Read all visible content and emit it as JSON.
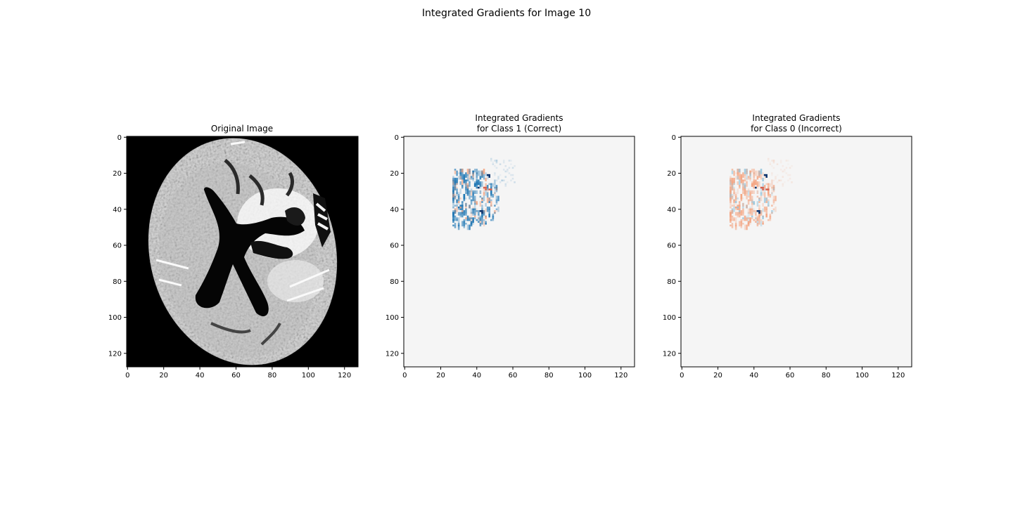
{
  "figure": {
    "suptitle": "Integrated Gradients for Image 10"
  },
  "chart_data": [
    {
      "type": "heatmap",
      "title": "Original Image",
      "colormap": "gray",
      "xlim": [
        0,
        128
      ],
      "ylim": [
        128,
        0
      ],
      "xticks": [
        0,
        20,
        40,
        60,
        80,
        100,
        120
      ],
      "yticks": [
        0,
        20,
        40,
        60,
        80,
        100,
        120
      ],
      "tick_labels_x": [
        "0",
        "20",
        "40",
        "60",
        "80",
        "100",
        "120"
      ],
      "tick_labels_y": [
        "0",
        "20",
        "40",
        "60",
        "80",
        "100",
        "120"
      ],
      "content": "axial brain MRI slice, bright tissue on black background with dark ventricles"
    },
    {
      "type": "heatmap",
      "title": "Integrated Gradients\n for Class 1 (Correct)",
      "colormap": "diverging blue-red",
      "xlim": [
        0,
        128
      ],
      "ylim": [
        128,
        0
      ],
      "xticks": [
        0,
        20,
        40,
        60,
        80,
        100,
        120
      ],
      "yticks": [
        0,
        20,
        40,
        60,
        80,
        100,
        120
      ],
      "tick_labels_x": [
        "0",
        "20",
        "40",
        "60",
        "80",
        "100",
        "120"
      ],
      "tick_labels_y": [
        "0",
        "20",
        "40",
        "60",
        "80",
        "100",
        "120"
      ],
      "attribution_region": {
        "x": [
          27,
          55
        ],
        "y": [
          18,
          50
        ],
        "dominant": "blue"
      },
      "colors": {
        "positive": "#1f77b4",
        "strong_positive": "#08306b",
        "negative": "#f4a582",
        "strong_negative": "#d6604d",
        "neutral": "#f5f5f5"
      }
    },
    {
      "type": "heatmap",
      "title": "Integrated Gradients\n for Class 0 (Incorrect)",
      "colormap": "diverging blue-red",
      "xlim": [
        0,
        128
      ],
      "ylim": [
        128,
        0
      ],
      "xticks": [
        0,
        20,
        40,
        60,
        80,
        100,
        120
      ],
      "yticks": [
        0,
        20,
        40,
        60,
        80,
        100,
        120
      ],
      "tick_labels_x": [
        "0",
        "20",
        "40",
        "60",
        "80",
        "100",
        "120"
      ],
      "tick_labels_y": [
        "0",
        "20",
        "40",
        "60",
        "80",
        "100",
        "120"
      ],
      "attribution_region": {
        "x": [
          27,
          55
        ],
        "y": [
          18,
          50
        ],
        "dominant": "red"
      },
      "colors": {
        "positive": "#92c5de",
        "strong_positive": "#08306b",
        "negative": "#f4a582",
        "strong_negative": "#d6604d",
        "neutral": "#f5f5f5"
      }
    }
  ]
}
